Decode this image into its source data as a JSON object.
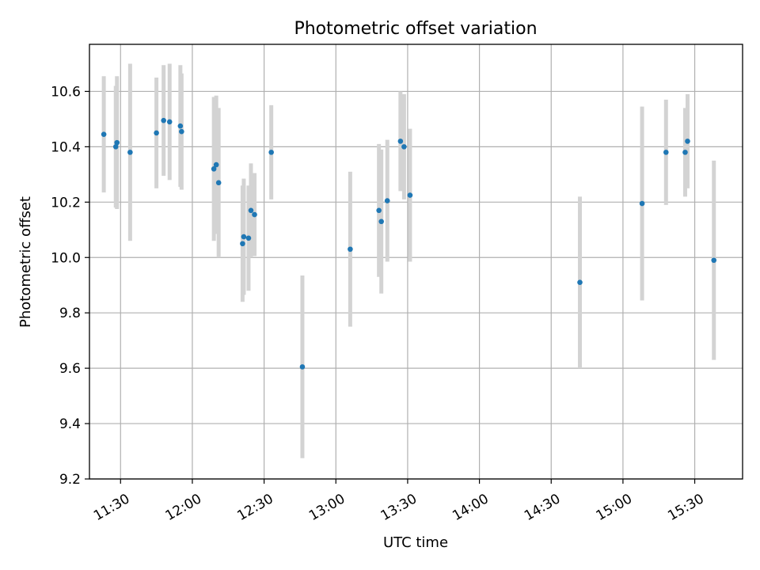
{
  "chart_data": {
    "type": "scatter",
    "title": "Photometric offset variation",
    "xlabel": "UTC time",
    "ylabel": "Photometric offset",
    "grid": true,
    "legend": false,
    "xlim": [
      "11:17",
      "15:50"
    ],
    "ylim": [
      9.2,
      10.77
    ],
    "x_ticks": [
      "11:30",
      "12:00",
      "12:30",
      "13:00",
      "13:30",
      "14:00",
      "14:30",
      "15:00",
      "15:30"
    ],
    "y_ticks": [
      9.2,
      9.4,
      9.6,
      9.8,
      10.0,
      10.2,
      10.4,
      10.6
    ],
    "series": [
      {
        "marker_color": "#1f77b4",
        "errorbar_color": "#d3d3d3",
        "points": [
          {
            "x": "11:23",
            "y": 10.445,
            "err": 0.21
          },
          {
            "x": "11:28",
            "y": 10.4,
            "err": 0.22
          },
          {
            "x": "11:28.5",
            "y": 10.415,
            "err": 0.24
          },
          {
            "x": "11:34",
            "y": 10.38,
            "err": 0.32
          },
          {
            "x": "11:45",
            "y": 10.45,
            "err": 0.2
          },
          {
            "x": "11:48",
            "y": 10.495,
            "err": 0.2
          },
          {
            "x": "11:50.5",
            "y": 10.49,
            "err": 0.21
          },
          {
            "x": "11:55",
            "y": 10.475,
            "err": 0.22
          },
          {
            "x": "11:55.5",
            "y": 10.455,
            "err": 0.21
          },
          {
            "x": "12:09",
            "y": 10.32,
            "err": 0.26
          },
          {
            "x": "12:10",
            "y": 10.335,
            "err": 0.25
          },
          {
            "x": "12:11",
            "y": 10.27,
            "err": 0.27
          },
          {
            "x": "12:21",
            "y": 10.05,
            "err": 0.21
          },
          {
            "x": "12:21.5",
            "y": 10.075,
            "err": 0.21
          },
          {
            "x": "12:23.5",
            "y": 10.07,
            "err": 0.19
          },
          {
            "x": "12:24.5",
            "y": 10.17,
            "err": 0.17
          },
          {
            "x": "12:26",
            "y": 10.155,
            "err": 0.15
          },
          {
            "x": "12:33",
            "y": 10.38,
            "err": 0.17
          },
          {
            "x": "12:46",
            "y": 9.605,
            "err": 0.33
          },
          {
            "x": "13:06",
            "y": 10.03,
            "err": 0.28
          },
          {
            "x": "13:18",
            "y": 10.17,
            "err": 0.24
          },
          {
            "x": "13:19",
            "y": 10.13,
            "err": 0.26
          },
          {
            "x": "13:21.5",
            "y": 10.205,
            "err": 0.22
          },
          {
            "x": "13:27",
            "y": 10.42,
            "err": 0.18
          },
          {
            "x": "13:28.5",
            "y": 10.4,
            "err": 0.19
          },
          {
            "x": "13:31",
            "y": 10.225,
            "err": 0.24
          },
          {
            "x": "14:42",
            "y": 9.91,
            "err": 0.31
          },
          {
            "x": "15:08",
            "y": 10.195,
            "err": 0.35
          },
          {
            "x": "15:18",
            "y": 10.38,
            "err": 0.19
          },
          {
            "x": "15:26",
            "y": 10.38,
            "err": 0.16
          },
          {
            "x": "15:27",
            "y": 10.42,
            "err": 0.17
          },
          {
            "x": "15:38",
            "y": 9.99,
            "err": 0.36
          }
        ]
      }
    ]
  }
}
